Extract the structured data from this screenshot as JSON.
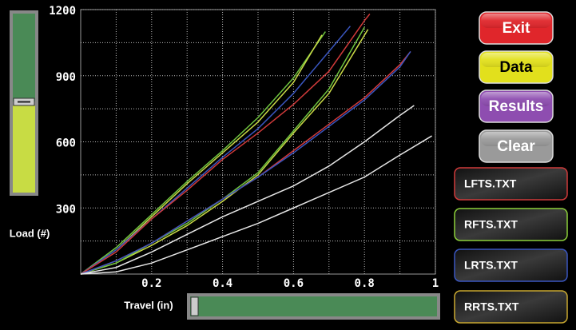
{
  "chart_data": {
    "type": "line",
    "x_label": "Travel (in)",
    "y_label": "Load (#)",
    "xlim": [
      0,
      1
    ],
    "ylim": [
      0,
      1200
    ],
    "xticks": [
      0.2,
      0.4,
      0.6,
      0.8,
      1
    ],
    "yticks": [
      300,
      600,
      900,
      1200
    ],
    "minor_xticks": [
      0.1,
      0.3,
      0.5,
      0.7,
      0.9
    ],
    "minor_yticks": [
      150,
      450,
      750,
      1050
    ],
    "grid": true,
    "series": [
      {
        "color": "#6fc43f",
        "x": [
          0,
          0.1,
          0.2,
          0.3,
          0.4,
          0.5,
          0.6,
          0.69
        ],
        "values": [
          0,
          120,
          270,
          420,
          560,
          710,
          890,
          1100
        ]
      },
      {
        "color": "#c9d946",
        "x": [
          0,
          0.1,
          0.2,
          0.3,
          0.4,
          0.5,
          0.6,
          0.68
        ],
        "values": [
          0,
          110,
          260,
          410,
          550,
          690,
          870,
          1085
        ]
      },
      {
        "color": "#3a56c0",
        "x": [
          0,
          0.1,
          0.2,
          0.3,
          0.4,
          0.5,
          0.6,
          0.7,
          0.76
        ],
        "values": [
          0,
          110,
          250,
          390,
          530,
          660,
          820,
          1010,
          1125
        ]
      },
      {
        "color": "#d03a3a",
        "x": [
          0,
          0.1,
          0.2,
          0.3,
          0.4,
          0.5,
          0.6,
          0.7,
          0.8,
          0.815
        ],
        "values": [
          0,
          100,
          250,
          380,
          520,
          640,
          770,
          920,
          1150,
          1180
        ]
      },
      {
        "color": "#c9d946",
        "x": [
          0,
          0.1,
          0.2,
          0.3,
          0.4,
          0.5,
          0.6,
          0.7,
          0.81
        ],
        "values": [
          0,
          50,
          130,
          220,
          330,
          450,
          640,
          820,
          1110
        ]
      },
      {
        "color": "#6fc43f",
        "x": [
          0,
          0.1,
          0.2,
          0.3,
          0.4,
          0.5,
          0.6,
          0.7,
          0.8
        ],
        "values": [
          0,
          50,
          140,
          230,
          340,
          460,
          650,
          840,
          1120
        ]
      },
      {
        "color": "#d03a3a",
        "x": [
          0,
          0.1,
          0.2,
          0.3,
          0.4,
          0.5,
          0.6,
          0.7,
          0.8,
          0.9,
          0.93
        ],
        "values": [
          0,
          60,
          140,
          240,
          340,
          440,
          560,
          680,
          800,
          950,
          1010
        ]
      },
      {
        "color": "#3a56c0",
        "x": [
          0,
          0.1,
          0.2,
          0.3,
          0.4,
          0.5,
          0.6,
          0.7,
          0.8,
          0.9,
          0.93
        ],
        "values": [
          0,
          60,
          140,
          240,
          340,
          440,
          550,
          670,
          790,
          940,
          1010
        ]
      },
      {
        "color": "#e6e6e6",
        "x": [
          0,
          0.1,
          0.2,
          0.3,
          0.4,
          0.5,
          0.6,
          0.7,
          0.8,
          0.9,
          0.94
        ],
        "values": [
          0,
          30,
          100,
          180,
          260,
          330,
          400,
          490,
          600,
          720,
          765
        ]
      },
      {
        "color": "#e6e6e6",
        "x": [
          0,
          0.1,
          0.2,
          0.3,
          0.4,
          0.5,
          0.6,
          0.7,
          0.8,
          0.9,
          0.99
        ],
        "values": [
          0,
          10,
          50,
          110,
          170,
          230,
          300,
          370,
          440,
          540,
          627
        ]
      }
    ]
  },
  "buttons": [
    "Exit",
    "Data",
    "Results",
    "Clear"
  ],
  "files": [
    "LFTS.TXT",
    "RFTS.TXT",
    "LRTS.TXT",
    "RRTS.TXT"
  ]
}
